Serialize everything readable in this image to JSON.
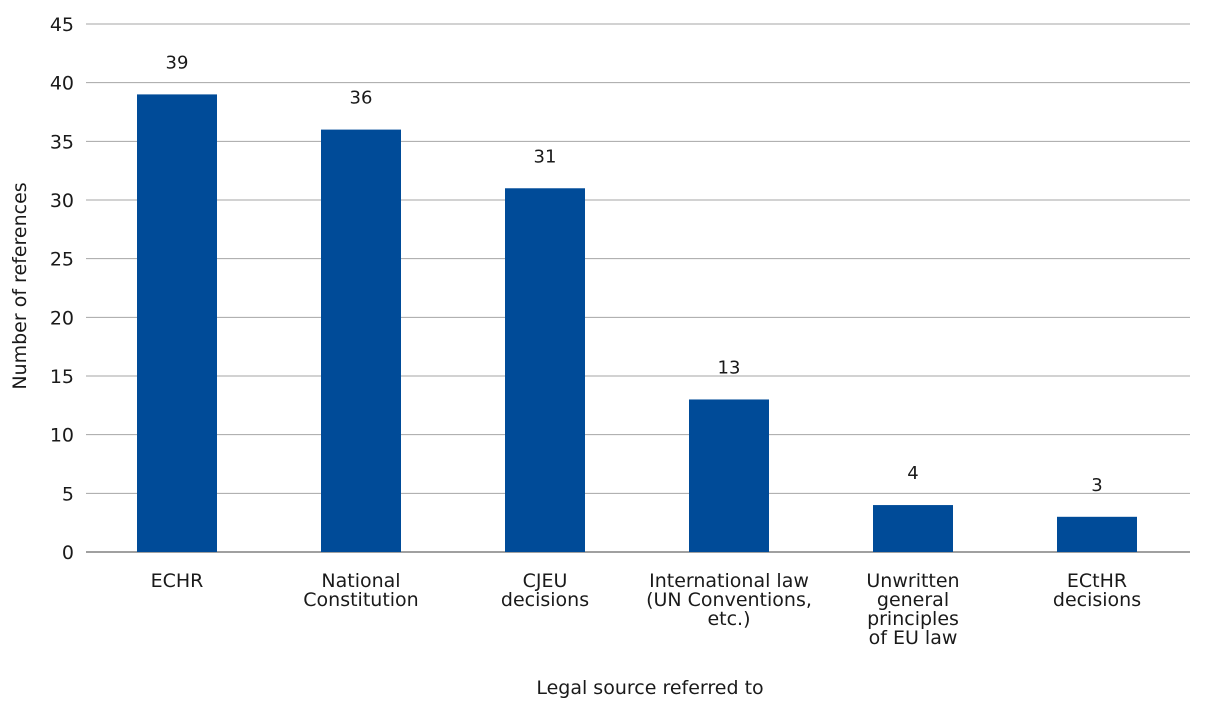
{
  "chart_data": {
    "type": "bar",
    "categories": [
      [
        "ECHR"
      ],
      [
        "National",
        "Constitution"
      ],
      [
        "CJEU",
        "decisions"
      ],
      [
        "International law",
        "(UN Conventions,",
        "etc.)"
      ],
      [
        "Unwritten",
        "general",
        "principles",
        "of EU law"
      ],
      [
        "ECtHR",
        "decisions"
      ]
    ],
    "values": [
      39,
      36,
      31,
      13,
      4,
      3
    ],
    "data_labels": [
      "39",
      "36",
      "31",
      "13",
      "4",
      "3"
    ],
    "xlabel": "Legal source referred to",
    "ylabel": "Number of references",
    "ylim": [
      0,
      45
    ],
    "yticks": [
      0,
      5,
      10,
      15,
      20,
      25,
      30,
      35,
      40,
      45
    ],
    "grid": true,
    "legend": "none",
    "colors": {
      "bar": "#004B98",
      "grid": "#a6a6a6",
      "axis": "#404040"
    }
  }
}
